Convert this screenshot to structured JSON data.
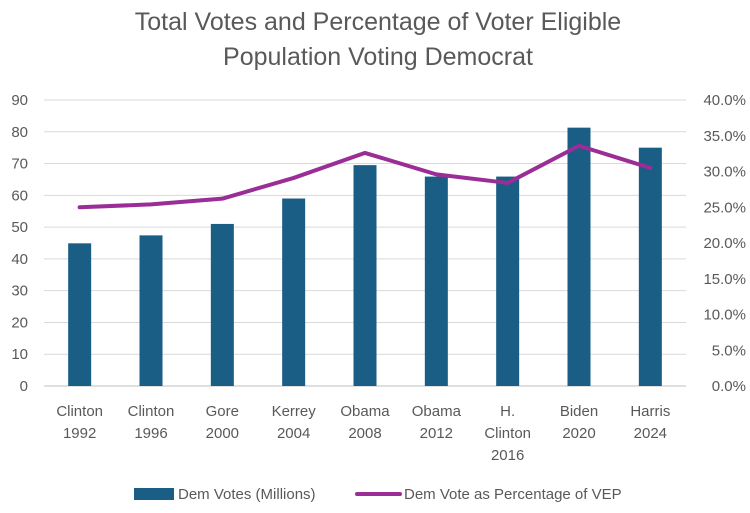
{
  "chart_data": {
    "type": "bar",
    "title_lines": [
      "Total Votes and Percentage of Voter Eligible",
      "Population Voting Democrat"
    ],
    "categories": [
      [
        "Clinton",
        "1992"
      ],
      [
        "Clinton",
        "1996"
      ],
      [
        "Gore",
        "2000"
      ],
      [
        "Kerrey",
        "2004"
      ],
      [
        "Obama",
        "2008"
      ],
      [
        "Obama",
        "2012"
      ],
      [
        "H.",
        "Clinton",
        "2016"
      ],
      [
        "Biden",
        "2020"
      ],
      [
        "Harris",
        "2024"
      ]
    ],
    "series": [
      {
        "name": "Dem Votes (Millions)",
        "type": "bar",
        "axis": "left",
        "color": "#1a5e85",
        "values": [
          44.9,
          47.4,
          51.0,
          59.0,
          69.5,
          65.9,
          65.9,
          81.3,
          75.0
        ]
      },
      {
        "name": "Dem Vote as Percentage of VEP",
        "type": "line",
        "axis": "right",
        "color": "#9b2d96",
        "values": [
          25.0,
          25.4,
          26.2,
          29.1,
          32.6,
          29.6,
          28.4,
          33.6,
          30.5
        ]
      }
    ],
    "left_axis": {
      "ylim": [
        0,
        90
      ],
      "ticks": [
        "0",
        "10",
        "20",
        "30",
        "40",
        "50",
        "60",
        "70",
        "80",
        "90"
      ]
    },
    "right_axis": {
      "ylim": [
        0,
        40
      ],
      "ticks": [
        "0.0%",
        "5.0%",
        "10.0%",
        "15.0%",
        "20.0%",
        "25.0%",
        "30.0%",
        "35.0%",
        "40.0%"
      ]
    },
    "grid": true,
    "legend_position": "bottom"
  }
}
